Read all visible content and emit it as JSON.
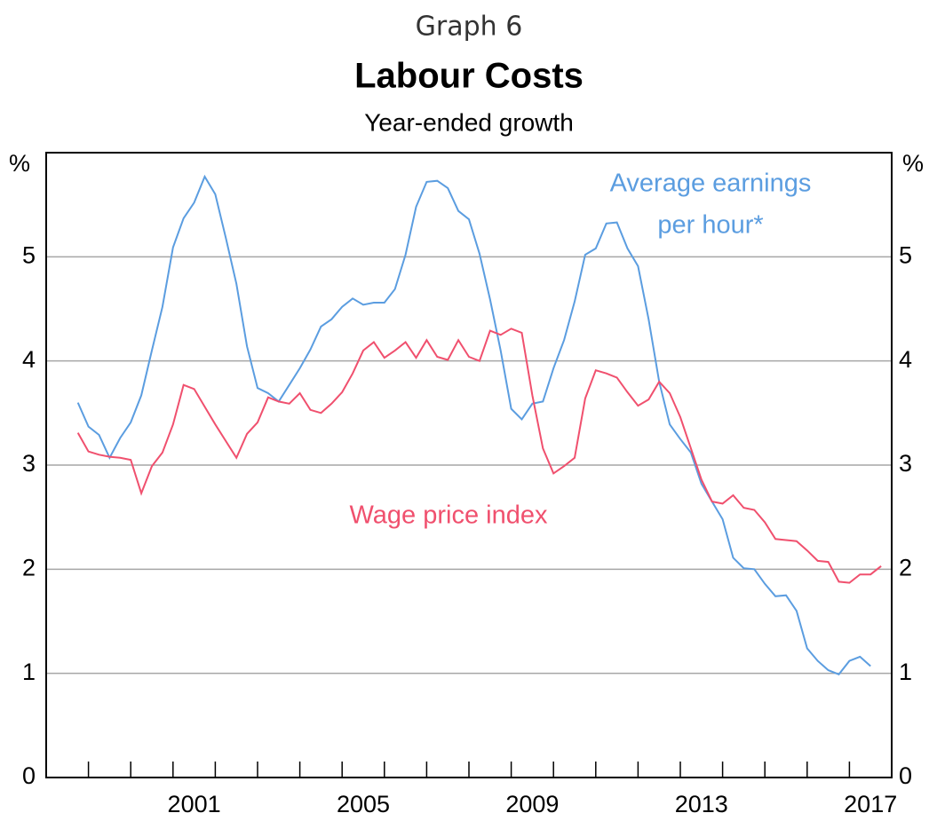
{
  "chart_data": {
    "type": "line",
    "supertitle": "Graph 6",
    "title": "Labour Costs",
    "subtitle": "Year-ended growth",
    "ylabel": "%",
    "y2label": "%",
    "xlim": [
      1998,
      2018
    ],
    "xticks": [
      {
        "value": 2001.5,
        "label": "2001"
      },
      {
        "value": 2005.5,
        "label": "2005"
      },
      {
        "value": 2009.5,
        "label": "2009"
      },
      {
        "value": 2013.5,
        "label": "2013"
      },
      {
        "value": 2017.5,
        "label": "2017"
      }
    ],
    "xminorticks": [
      1999,
      2000,
      2001,
      2002,
      2003,
      2004,
      2005,
      2006,
      2007,
      2008,
      2009,
      2010,
      2011,
      2012,
      2013,
      2014,
      2015,
      2016,
      2017
    ],
    "ylim": [
      0,
      6
    ],
    "yticks": [
      0,
      1,
      2,
      3,
      4,
      5
    ],
    "y2lim": [
      0,
      6
    ],
    "y2ticks": [
      0,
      1,
      2,
      3,
      4,
      5
    ],
    "grid": true,
    "x": [
      1998.75,
      1999,
      1999.25,
      1999.5,
      1999.75,
      2000,
      2000.25,
      2000.5,
      2000.75,
      2001,
      2001.25,
      2001.5,
      2001.75,
      2002,
      2002.25,
      2002.5,
      2002.75,
      2003,
      2003.25,
      2003.5,
      2003.75,
      2004,
      2004.25,
      2004.5,
      2004.75,
      2005,
      2005.25,
      2005.5,
      2005.75,
      2006,
      2006.25,
      2006.5,
      2006.75,
      2007,
      2007.25,
      2007.5,
      2007.75,
      2008,
      2008.25,
      2008.5,
      2008.75,
      2009,
      2009.25,
      2009.5,
      2009.75,
      2010,
      2010.25,
      2010.5,
      2010.75,
      2011,
      2011.25,
      2011.5,
      2011.75,
      2012,
      2012.25,
      2012.5,
      2012.75,
      2013,
      2013.25,
      2013.5,
      2013.75,
      2014,
      2014.25,
      2014.5,
      2014.75,
      2015,
      2015.25,
      2015.5,
      2015.75,
      2016,
      2016.25,
      2016.5,
      2016.75,
      2017,
      2017.25,
      2017.5,
      2017.75
    ],
    "series": [
      {
        "name": "Average earnings per hour*",
        "color": "#5b9de0",
        "values": [
          3.6,
          3.37,
          3.29,
          3.07,
          3.26,
          3.41,
          3.67,
          4.1,
          4.52,
          5.09,
          5.37,
          5.52,
          5.77,
          5.6,
          5.18,
          4.74,
          4.14,
          3.74,
          3.69,
          3.61,
          3.77,
          3.93,
          4.11,
          4.33,
          4.4,
          4.52,
          4.6,
          4.54,
          4.56,
          4.56,
          4.69,
          5.02,
          5.48,
          5.72,
          5.73,
          5.66,
          5.44,
          5.36,
          5.03,
          4.59,
          4.1,
          3.54,
          3.44,
          3.59,
          3.61,
          3.93,
          4.2,
          4.57,
          5.02,
          5.08,
          5.32,
          5.33,
          5.08,
          4.91,
          4.4,
          3.8,
          3.39,
          3.25,
          3.12,
          2.82,
          2.65,
          2.48,
          2.11,
          2.01,
          2.0,
          1.86,
          1.74,
          1.75,
          1.6,
          1.24,
          1.12,
          1.03,
          0.99,
          1.12,
          1.16,
          1.07,
          null
        ]
      },
      {
        "name": "Wage price index",
        "color": "#f0506e",
        "values": [
          3.31,
          3.13,
          3.1,
          3.08,
          3.07,
          3.05,
          2.73,
          2.99,
          3.12,
          3.39,
          3.77,
          3.73,
          3.56,
          3.39,
          3.23,
          3.07,
          3.3,
          3.41,
          3.65,
          3.61,
          3.59,
          3.69,
          3.53,
          3.5,
          3.59,
          3.7,
          3.88,
          4.1,
          4.18,
          4.03,
          4.1,
          4.18,
          4.03,
          4.2,
          4.04,
          4.01,
          4.2,
          4.04,
          4.0,
          4.29,
          4.25,
          4.31,
          4.27,
          3.67,
          3.16,
          2.92,
          2.99,
          3.07,
          3.64,
          3.91,
          3.88,
          3.84,
          3.7,
          3.57,
          3.63,
          3.8,
          3.69,
          3.46,
          3.16,
          2.86,
          2.65,
          2.63,
          2.71,
          2.59,
          2.57,
          2.45,
          2.29,
          2.28,
          2.27,
          2.18,
          2.08,
          2.07,
          1.88,
          1.87,
          1.95,
          1.95,
          2.03
        ]
      }
    ],
    "annotations": [
      {
        "text": "Average earnings",
        "color": "#5b9de0"
      },
      {
        "text": "per hour*",
        "color": "#5b9de0"
      },
      {
        "text": "Wage price index",
        "color": "#f0506e"
      }
    ]
  }
}
